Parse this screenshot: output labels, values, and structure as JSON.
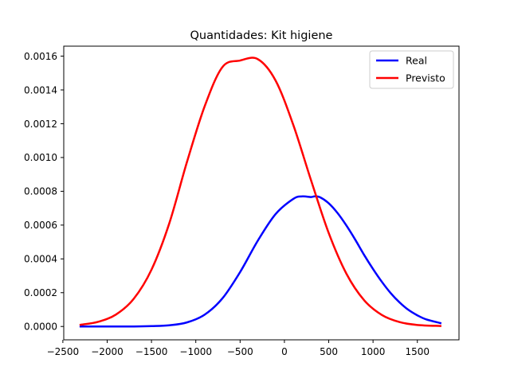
{
  "chart_data": {
    "type": "line",
    "title": "Quantidades: Kit higiene",
    "xlabel": "",
    "ylabel": "",
    "xlim": [
      -2490,
      1970
    ],
    "ylim": [
      -7.9e-05,
      0.001659
    ],
    "xticks": [
      -2500,
      -2000,
      -1500,
      -1000,
      -500,
      0,
      500,
      1000,
      1500
    ],
    "xtick_labels": [
      "−2500",
      "−2000",
      "−1500",
      "−1000",
      "−500",
      "0",
      "500",
      "1000",
      "1500"
    ],
    "yticks": [
      0,
      0.0002,
      0.0004,
      0.0006,
      0.0008,
      0.001,
      0.0012,
      0.0014,
      0.0016
    ],
    "ytick_labels": [
      "0.0000",
      "0.0002",
      "0.0004",
      "0.0006",
      "0.0008",
      "0.0010",
      "0.0012",
      "0.0014",
      "0.0016"
    ],
    "grid": false,
    "legend_position": "top-right",
    "series": [
      {
        "name": "Real",
        "color": "#0000ff",
        "x": [
          -2300,
          -2100,
          -1900,
          -1700,
          -1500,
          -1300,
          -1100,
          -900,
          -700,
          -500,
          -300,
          -100,
          100,
          200,
          300,
          340,
          400,
          500,
          600,
          700,
          800,
          900,
          1000,
          1100,
          1200,
          1300,
          1400,
          1500,
          1600,
          1760
        ],
        "y": [
          0.0,
          0.0,
          0.0,
          0.0,
          2e-06,
          7e-06,
          2.4e-05,
          7e-05,
          0.000166,
          0.000322,
          0.000508,
          0.000665,
          0.000755,
          0.00077,
          0.000766,
          0.00077,
          0.000765,
          0.000729,
          0.000671,
          0.000597,
          0.000513,
          0.000423,
          0.00034,
          0.000264,
          0.000197,
          0.000142,
          9.8e-05,
          6.6e-05,
          4.2e-05,
          2e-05
        ]
      },
      {
        "name": "Previsto",
        "color": "#ff0000",
        "x": [
          -2300,
          -2100,
          -1900,
          -1700,
          -1500,
          -1300,
          -1100,
          -900,
          -700,
          -500,
          -300,
          -100,
          100,
          300,
          500,
          700,
          900,
          1100,
          1300,
          1500,
          1760
        ],
        "y": [
          1e-05,
          2.8e-05,
          7.1e-05,
          0.000164,
          0.000336,
          0.000609,
          0.000973,
          0.001303,
          0.001535,
          0.001574,
          0.001582,
          0.001456,
          0.001193,
          0.000866,
          0.000553,
          0.000312,
          0.000155,
          6.8e-05,
          2.6e-05,
          9e-06,
          3e-06
        ]
      }
    ]
  }
}
